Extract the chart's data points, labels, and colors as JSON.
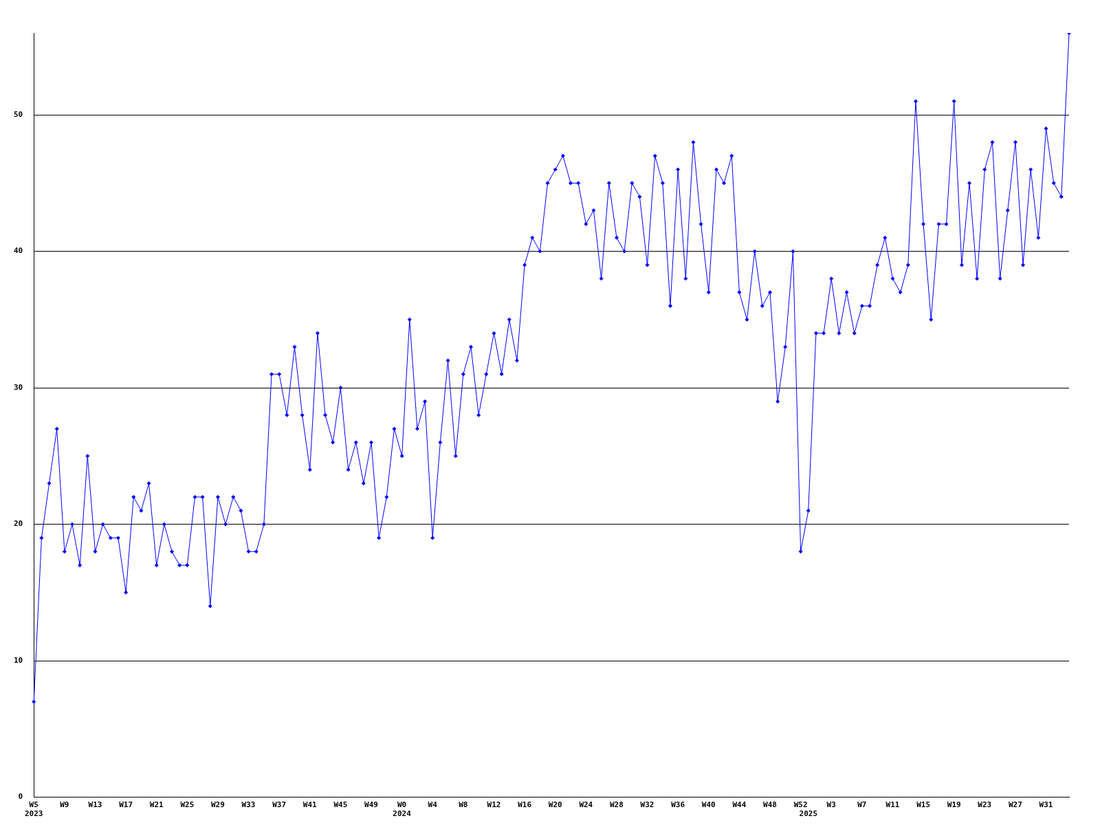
{
  "chart_data": {
    "type": "line",
    "categories": [
      "W5\n2023",
      null,
      null,
      null,
      "W9",
      null,
      null,
      null,
      "W13",
      null,
      null,
      null,
      "W17",
      null,
      null,
      null,
      "W21",
      null,
      null,
      null,
      "W25",
      null,
      null,
      null,
      "W29",
      null,
      null,
      null,
      "W33",
      null,
      null,
      null,
      "W37",
      null,
      null,
      null,
      "W41",
      null,
      null,
      null,
      "W45",
      null,
      null,
      null,
      "W49",
      null,
      null,
      null,
      "W0\n2024",
      null,
      null,
      null,
      "W4",
      null,
      null,
      null,
      "W8",
      null,
      null,
      null,
      "W12",
      null,
      null,
      null,
      "W16",
      null,
      null,
      null,
      "W20",
      null,
      null,
      null,
      "W24",
      null,
      null,
      null,
      "W28",
      null,
      null,
      null,
      "W32",
      null,
      null,
      null,
      "W36",
      null,
      null,
      null,
      "W40",
      null,
      null,
      null,
      "W44",
      null,
      null,
      null,
      "W48",
      null,
      null,
      null,
      "W52",
      "\n2025",
      null,
      null,
      "W3",
      null,
      null,
      null,
      "W7",
      null,
      null,
      null,
      "W11",
      null,
      null,
      null,
      "W15",
      null,
      null,
      null,
      "W19",
      null,
      null,
      null,
      "W23",
      null,
      null,
      null,
      "W27",
      null,
      null,
      null,
      "W31",
      null,
      null,
      null
    ],
    "series": [
      {
        "color": "#0000ff",
        "values": [
          7,
          19,
          23,
          27,
          18,
          20,
          17,
          25,
          18,
          20,
          19,
          19,
          15,
          22,
          21,
          23,
          17,
          20,
          18,
          17,
          17,
          22,
          22,
          14,
          22,
          20,
          22,
          21,
          18,
          18,
          20,
          31,
          31,
          28,
          33,
          28,
          24,
          34,
          28,
          26,
          30,
          24,
          26,
          23,
          26,
          19,
          22,
          27,
          25,
          35,
          27,
          29,
          19,
          26,
          32,
          25,
          31,
          33,
          28,
          31,
          34,
          31,
          35,
          32,
          39,
          41,
          40,
          45,
          46,
          47,
          45,
          45,
          42,
          43,
          38,
          45,
          41,
          40,
          45,
          44,
          39,
          47,
          45,
          36,
          46,
          38,
          48,
          42,
          37,
          46,
          45,
          47,
          37,
          35,
          40,
          36,
          37,
          29,
          33,
          40,
          18,
          21,
          34,
          34,
          38,
          34,
          37,
          34,
          36,
          36,
          39,
          41,
          38,
          37,
          39,
          51,
          42,
          35,
          42,
          42,
          51,
          39,
          45,
          38,
          46,
          48,
          38,
          43,
          48,
          39,
          46,
          41,
          49,
          45,
          44,
          56
        ]
      }
    ],
    "ylim": [
      0,
      56
    ],
    "yticks": [
      0,
      10,
      20,
      30,
      40,
      50
    ],
    "grid": "y",
    "marker": "diamond",
    "line_style": "solid",
    "legend": false
  }
}
